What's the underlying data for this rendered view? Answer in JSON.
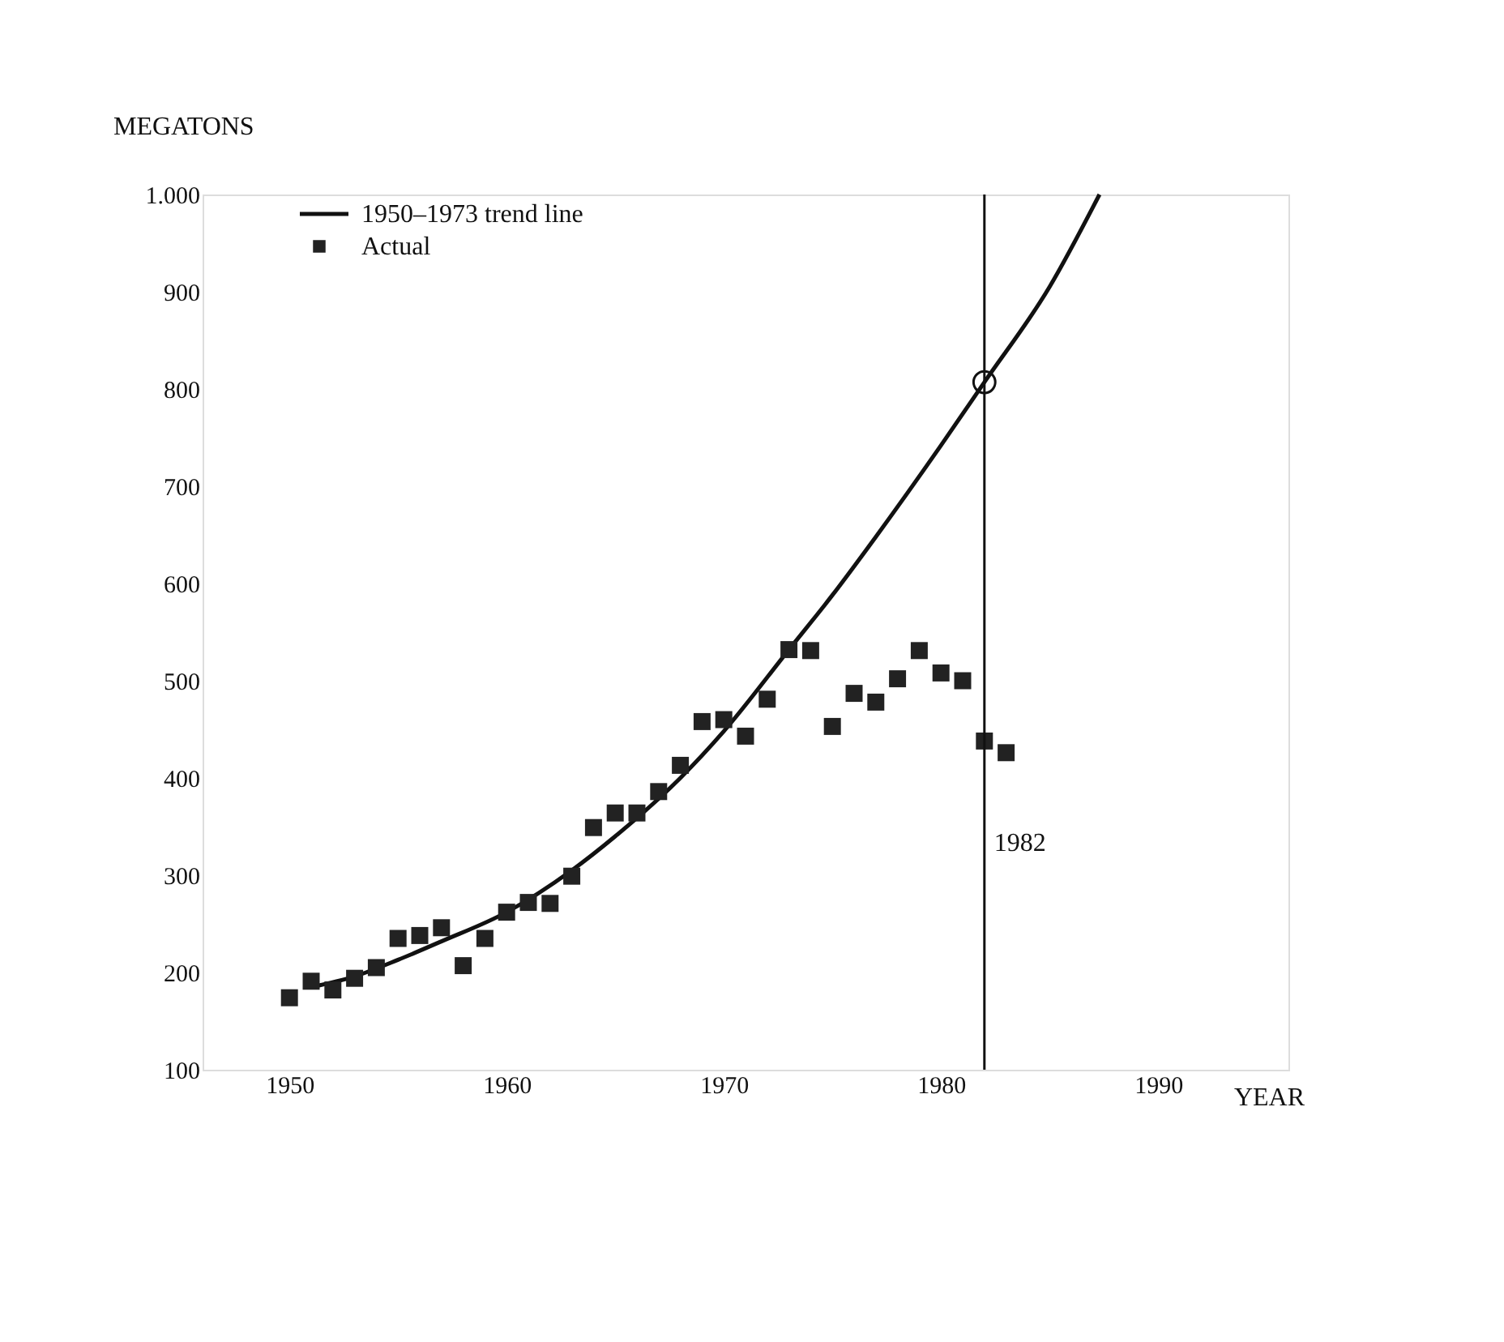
{
  "chart_data": {
    "type": "scatter",
    "xlabel": "YEAR",
    "ylabel": "MEGATONS",
    "xlim": [
      1946,
      1996
    ],
    "xticks": [
      1950,
      1960,
      1970,
      1980,
      1990
    ],
    "ylim": [
      100,
      1000
    ],
    "yticks": [
      100,
      200,
      300,
      400,
      500,
      600,
      700,
      800,
      900,
      {
        "value": 1000,
        "label": "1.000"
      }
    ],
    "grid": false,
    "legend": "top left",
    "series": [
      {
        "name": "1950–1973 trend line",
        "type": "line",
        "color": "#111111",
        "marker": "none",
        "line_style": "solid",
        "x": [
          1951,
          1953,
          1955,
          1957,
          1960,
          1963,
          1965,
          1968,
          1970,
          1973,
          1975,
          1977,
          1980,
          1982,
          1985,
          1987.3
        ],
        "values": [
          185,
          196,
          213,
          232,
          262,
          305,
          340,
          400,
          448,
          532,
          588,
          648,
          742,
          807,
          905,
          1000
        ]
      },
      {
        "name": "Actual",
        "type": "scatter",
        "color": "#222222",
        "marker": "square",
        "x": [
          1950,
          1951,
          1952,
          1953,
          1954,
          1955,
          1956,
          1957,
          1958,
          1959,
          1960,
          1961,
          1962,
          1963,
          1964,
          1965,
          1966,
          1967,
          1968,
          1969,
          1970,
          1971,
          1972,
          1973,
          1974,
          1975,
          1976,
          1977,
          1978,
          1979,
          1980,
          1981,
          1982,
          1983
        ],
        "values": [
          174,
          191,
          182,
          194,
          205,
          235,
          238,
          246,
          207,
          235,
          262,
          272,
          271,
          299,
          349,
          364,
          364,
          386,
          413,
          458,
          460,
          443,
          481,
          532,
          531,
          453,
          487,
          478,
          502,
          531,
          508,
          500,
          438,
          426
        ]
      },
      {
        "type": "scatter",
        "color": "#111111",
        "marker": "circle",
        "x": [
          1982
        ],
        "values": [
          807
        ]
      }
    ],
    "ref_lines": [
      {
        "axis": "x",
        "value": 1982,
        "label": "1982",
        "color": "#111111"
      }
    ]
  }
}
